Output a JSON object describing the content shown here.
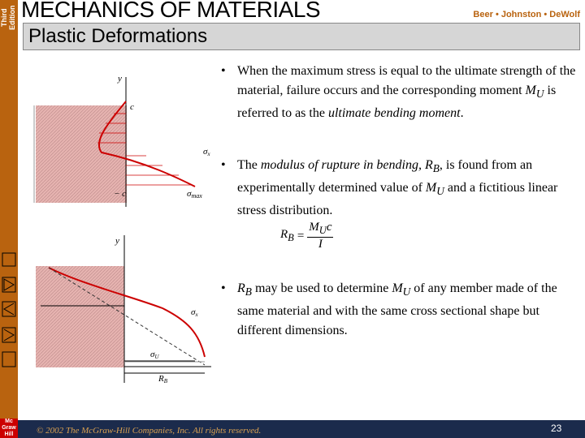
{
  "sidebar": {
    "edition": [
      "Third",
      "Edition"
    ],
    "logo": [
      "Mc",
      "Graw",
      "Hill"
    ]
  },
  "header": {
    "title": "MECHANICS OF MATERIALS",
    "authors": "Beer • Johnston • DeWolf",
    "subtitle": "Plastic Deformations"
  },
  "figure1": {
    "y": "y",
    "c": "c",
    "sigma_x": "σ",
    "sigma_x_sub": "x",
    "minus_c": "− c",
    "sigma_max": "σ",
    "sigma_max_sub": "max"
  },
  "figure2": {
    "y": "y",
    "sigma_x": "σ",
    "sigma_x_sub": "x",
    "sigma_u": "σ",
    "sigma_u_sub": "U",
    "rb": "R",
    "rb_sub": "B"
  },
  "bullets": [
    [
      "When the maximum stress is equal to the ultimate strength of the material, failure occurs and the corresponding moment ",
      "M",
      "U",
      " is referred to as the ",
      "ultimate bending moment",
      "."
    ],
    [
      "The ",
      "modulus of rupture in bending, R",
      "B",
      ", is found from an experimentally determined value of ",
      "M",
      "U",
      " and a fictitious linear stress distribution."
    ],
    [
      "R",
      "B",
      " may be used to determine ",
      "M",
      "U",
      " of any member made of the same material and with the same cross sectional shape but different dimensions."
    ]
  ],
  "formula": {
    "lhs": "R",
    "lhs_sub": "B",
    "eq": "=",
    "num": "M",
    "num_sub": "U",
    "num_tail": "c",
    "den": "I"
  },
  "footer": {
    "copyright": "© 2002 The McGraw-Hill Companies, Inc. All rights reserved.",
    "page": "23"
  }
}
